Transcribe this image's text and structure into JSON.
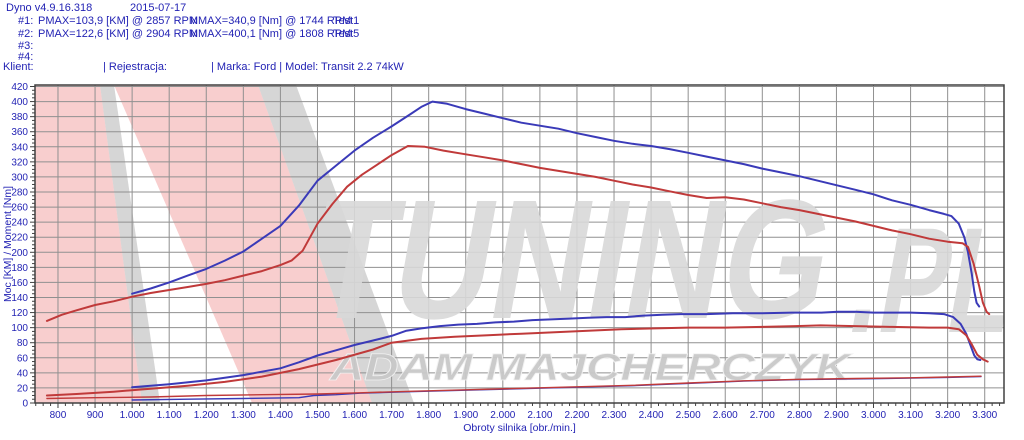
{
  "header": {
    "app_title": "Dyno v4.9.16.318",
    "date": "2015-07-17",
    "runs": [
      {
        "id": "#1:",
        "pmax": "PMAX=103,9 [KM] @ 2857 RPM",
        "nmax": "NMAX=340,9 [Nm] @ 1744 RPM",
        "test": "Test1"
      },
      {
        "id": "#2:",
        "pmax": "PMAX=122,6 [KM] @ 2904 RPM",
        "nmax": "NMAX=400,1 [Nm] @ 1808 RPM",
        "test": "Test5"
      },
      {
        "id": "#3:",
        "pmax": "",
        "nmax": "",
        "test": ""
      },
      {
        "id": "#4:",
        "pmax": "",
        "nmax": "",
        "test": ""
      }
    ],
    "client": "Klient:",
    "registration": "| Rejestracja:",
    "brand_model": "| Marka: Ford | Model: Transit 2.2 74kW"
  },
  "watermark": {
    "tuning": "TUNING",
    "pl": ".PL",
    "name": "ADAM MAJCHERCZYK",
    "pink": "rgba(242,166,166,0.55)",
    "gray": "rgba(173,173,173,0.50)",
    "letter_color": "#d9d9d9",
    "name_color": "#c9c9c9"
  },
  "colors": {
    "text_blue": "#2323b4",
    "curve_blue": "#3a3ab8",
    "curve_red": "#c03a3a",
    "grid": "#909090",
    "border": "#404040"
  },
  "chart_data": {
    "type": "line",
    "title": "",
    "xlabel": "Obroty silnika [obr./min.]",
    "ylabel": "Moc [KM] / Moment [Nm]",
    "xlim": [
      738,
      3352
    ],
    "ylim": [
      0,
      422
    ],
    "x_tick_major": 100,
    "x_tick_minor": 20,
    "y_tick_major": 20,
    "y_tick_minor": 5,
    "x_tick_start": 800,
    "x_tick_end": 3300,
    "grid": true,
    "legend_position": "none",
    "series": [
      {
        "name": "torque-test5-blue",
        "unit": "Nm",
        "color": "blue",
        "width": 2,
        "points": [
          [
            1000,
            145
          ],
          [
            1050,
            152
          ],
          [
            1100,
            160
          ],
          [
            1150,
            169
          ],
          [
            1200,
            178
          ],
          [
            1250,
            189
          ],
          [
            1300,
            201
          ],
          [
            1350,
            218
          ],
          [
            1400,
            235
          ],
          [
            1450,
            262
          ],
          [
            1500,
            295
          ],
          [
            1550,
            315
          ],
          [
            1600,
            335
          ],
          [
            1650,
            352
          ],
          [
            1700,
            367
          ],
          [
            1750,
            383
          ],
          [
            1780,
            393
          ],
          [
            1810,
            400
          ],
          [
            1850,
            397
          ],
          [
            1900,
            390
          ],
          [
            1950,
            384
          ],
          [
            2000,
            378
          ],
          [
            2050,
            372
          ],
          [
            2100,
            368
          ],
          [
            2150,
            364
          ],
          [
            2200,
            358
          ],
          [
            2250,
            353
          ],
          [
            2300,
            348
          ],
          [
            2350,
            344
          ],
          [
            2400,
            341
          ],
          [
            2450,
            337
          ],
          [
            2500,
            332
          ],
          [
            2550,
            327
          ],
          [
            2600,
            322
          ],
          [
            2650,
            317
          ],
          [
            2700,
            311
          ],
          [
            2750,
            306
          ],
          [
            2800,
            301
          ],
          [
            2850,
            295
          ],
          [
            2900,
            289
          ],
          [
            2950,
            283
          ],
          [
            3000,
            277
          ],
          [
            3050,
            269
          ],
          [
            3100,
            263
          ],
          [
            3150,
            256
          ],
          [
            3190,
            251
          ],
          [
            3210,
            248
          ],
          [
            3230,
            238
          ],
          [
            3245,
            220
          ],
          [
            3255,
            200
          ],
          [
            3265,
            172
          ],
          [
            3272,
            148
          ],
          [
            3278,
            133
          ],
          [
            3285,
            128
          ]
        ]
      },
      {
        "name": "torque-test1-red",
        "unit": "Nm",
        "color": "red",
        "width": 2,
        "points": [
          [
            770,
            109
          ],
          [
            810,
            117
          ],
          [
            850,
            123
          ],
          [
            900,
            130
          ],
          [
            950,
            135
          ],
          [
            1000,
            141
          ],
          [
            1050,
            146
          ],
          [
            1100,
            150
          ],
          [
            1150,
            154
          ],
          [
            1200,
            158
          ],
          [
            1250,
            163
          ],
          [
            1300,
            169
          ],
          [
            1350,
            175
          ],
          [
            1400,
            183
          ],
          [
            1430,
            189
          ],
          [
            1460,
            202
          ],
          [
            1500,
            238
          ],
          [
            1540,
            264
          ],
          [
            1580,
            287
          ],
          [
            1620,
            303
          ],
          [
            1660,
            316
          ],
          [
            1700,
            329
          ],
          [
            1744,
            341
          ],
          [
            1790,
            340
          ],
          [
            1840,
            335
          ],
          [
            1900,
            330
          ],
          [
            1950,
            326
          ],
          [
            2000,
            322
          ],
          [
            2050,
            317
          ],
          [
            2100,
            312
          ],
          [
            2150,
            308
          ],
          [
            2200,
            304
          ],
          [
            2250,
            300
          ],
          [
            2300,
            295
          ],
          [
            2350,
            290
          ],
          [
            2400,
            286
          ],
          [
            2450,
            281
          ],
          [
            2500,
            276
          ],
          [
            2550,
            272
          ],
          [
            2600,
            273
          ],
          [
            2650,
            270
          ],
          [
            2700,
            265
          ],
          [
            2750,
            260
          ],
          [
            2800,
            256
          ],
          [
            2850,
            251
          ],
          [
            2900,
            246
          ],
          [
            2950,
            241
          ],
          [
            3000,
            235
          ],
          [
            3050,
            229
          ],
          [
            3100,
            224
          ],
          [
            3150,
            218
          ],
          [
            3200,
            214
          ],
          [
            3240,
            212
          ],
          [
            3255,
            207
          ],
          [
            3270,
            185
          ],
          [
            3285,
            155
          ],
          [
            3295,
            133
          ],
          [
            3305,
            121
          ],
          [
            3312,
            118
          ]
        ]
      },
      {
        "name": "power-test5-blue",
        "unit": "KM",
        "color": "blue",
        "width": 2,
        "points": [
          [
            1000,
            21
          ],
          [
            1100,
            25
          ],
          [
            1200,
            30
          ],
          [
            1300,
            37
          ],
          [
            1400,
            46
          ],
          [
            1450,
            54
          ],
          [
            1500,
            63
          ],
          [
            1550,
            70
          ],
          [
            1600,
            77
          ],
          [
            1650,
            83
          ],
          [
            1700,
            89
          ],
          [
            1740,
            96
          ],
          [
            1780,
            99
          ],
          [
            1830,
            102
          ],
          [
            1880,
            104
          ],
          [
            1930,
            105
          ],
          [
            1980,
            107
          ],
          [
            2030,
            108
          ],
          [
            2080,
            110
          ],
          [
            2130,
            111
          ],
          [
            2180,
            112
          ],
          [
            2230,
            113
          ],
          [
            2280,
            114
          ],
          [
            2330,
            114
          ],
          [
            2380,
            116
          ],
          [
            2430,
            117
          ],
          [
            2480,
            118
          ],
          [
            2550,
            118
          ],
          [
            2620,
            119
          ],
          [
            2700,
            119
          ],
          [
            2780,
            120
          ],
          [
            2860,
            120
          ],
          [
            2904,
            121
          ],
          [
            2950,
            121
          ],
          [
            3000,
            120
          ],
          [
            3050,
            120
          ],
          [
            3100,
            120
          ],
          [
            3150,
            119
          ],
          [
            3190,
            118
          ],
          [
            3215,
            114
          ],
          [
            3235,
            105
          ],
          [
            3250,
            92
          ],
          [
            3262,
            76
          ],
          [
            3272,
            63
          ],
          [
            3280,
            58
          ],
          [
            3288,
            57
          ]
        ]
      },
      {
        "name": "power-test1-red",
        "unit": "KM",
        "color": "red",
        "width": 2,
        "points": [
          [
            770,
            10
          ],
          [
            850,
            12
          ],
          [
            950,
            15
          ],
          [
            1050,
            19
          ],
          [
            1150,
            23
          ],
          [
            1250,
            28
          ],
          [
            1350,
            35
          ],
          [
            1450,
            45
          ],
          [
            1550,
            57
          ],
          [
            1650,
            71
          ],
          [
            1700,
            80
          ],
          [
            1780,
            85
          ],
          [
            1870,
            88
          ],
          [
            1960,
            90
          ],
          [
            2050,
            92
          ],
          [
            2140,
            94
          ],
          [
            2230,
            96
          ],
          [
            2320,
            98
          ],
          [
            2410,
            99
          ],
          [
            2500,
            100
          ],
          [
            2600,
            100
          ],
          [
            2700,
            101
          ],
          [
            2790,
            102
          ],
          [
            2857,
            103
          ],
          [
            2950,
            102
          ],
          [
            3050,
            101
          ],
          [
            3150,
            100
          ],
          [
            3200,
            100
          ],
          [
            3230,
            98
          ],
          [
            3250,
            90
          ],
          [
            3265,
            78
          ],
          [
            3280,
            64
          ],
          [
            3295,
            58
          ],
          [
            3308,
            55
          ]
        ]
      },
      {
        "name": "loss-test5-blue",
        "unit": "KM",
        "color": "blue",
        "width": 1.4,
        "points": [
          [
            1000,
            4
          ],
          [
            1150,
            5
          ],
          [
            1300,
            6
          ],
          [
            1450,
            7
          ],
          [
            1490,
            10
          ],
          [
            1550,
            11
          ],
          [
            1614,
            13
          ],
          [
            1750,
            15
          ],
          [
            1900,
            17
          ],
          [
            2050,
            19
          ],
          [
            2200,
            21
          ],
          [
            2350,
            23
          ],
          [
            2500,
            26
          ],
          [
            2650,
            29
          ],
          [
            2800,
            31
          ],
          [
            2950,
            32
          ],
          [
            3100,
            33
          ],
          [
            3200,
            34
          ],
          [
            3290,
            35
          ]
        ]
      },
      {
        "name": "loss-test1-red",
        "unit": "KM",
        "color": "red",
        "width": 1.4,
        "points": [
          [
            770,
            6
          ],
          [
            900,
            7
          ],
          [
            1050,
            8
          ],
          [
            1200,
            10
          ],
          [
            1350,
            11
          ],
          [
            1500,
            12
          ],
          [
            1614,
            13.5
          ],
          [
            1750,
            15.5
          ],
          [
            1900,
            17.5
          ],
          [
            2050,
            19.5
          ],
          [
            2200,
            21.5
          ],
          [
            2350,
            23.5
          ],
          [
            2500,
            26.5
          ],
          [
            2650,
            29.5
          ],
          [
            2800,
            31.5
          ],
          [
            2950,
            32.5
          ],
          [
            3100,
            33.5
          ],
          [
            3200,
            34.5
          ],
          [
            3290,
            35.5
          ]
        ]
      }
    ]
  }
}
